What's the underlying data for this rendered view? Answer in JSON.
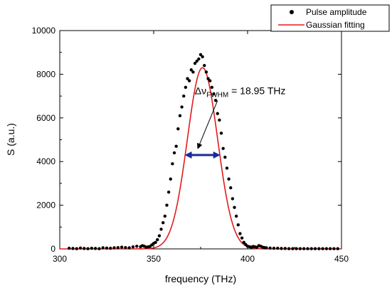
{
  "chart_data": {
    "type": "scatter",
    "xlabel": "frequency (THz)",
    "ylabel": "S (a.u.)",
    "xlim": [
      300,
      450
    ],
    "ylim": [
      0,
      10000
    ],
    "x_ticks": [
      300,
      350,
      400,
      450
    ],
    "y_ticks": [
      0,
      2000,
      4000,
      6000,
      8000,
      10000
    ],
    "legend_position": "top-right",
    "colors": {
      "points": "#000000",
      "fit": "#e41a1c",
      "fwhm_arrow": "#1a2a9c"
    },
    "series": [
      {
        "name": "Pulse amplitude",
        "kind": "scatter",
        "x": [
          305,
          307,
          309,
          311,
          313,
          315,
          317,
          319,
          321,
          323,
          325,
          327,
          329,
          331,
          333,
          335,
          337,
          339,
          341,
          343,
          344,
          345,
          346,
          347,
          348,
          349,
          350,
          351,
          352,
          353,
          354,
          355,
          356,
          357,
          358,
          359,
          360,
          361,
          362,
          363,
          364,
          365,
          366,
          367,
          368,
          369,
          370,
          371,
          372,
          373,
          374,
          375,
          376,
          377,
          378,
          379,
          380,
          381,
          382,
          383,
          384,
          385,
          386,
          387,
          388,
          389,
          390,
          391,
          392,
          393,
          394,
          395,
          396,
          397,
          398,
          399,
          400,
          401,
          402,
          403,
          404,
          405,
          406,
          407,
          408,
          409,
          410,
          412,
          414,
          416,
          418,
          420,
          422,
          424,
          426,
          428,
          430,
          432,
          434,
          436,
          438,
          440,
          442,
          444,
          446,
          448
        ],
        "y": [
          30,
          20,
          10,
          40,
          20,
          10,
          30,
          20,
          10,
          50,
          40,
          30,
          50,
          60,
          80,
          60,
          50,
          90,
          120,
          100,
          150,
          120,
          80,
          90,
          110,
          180,
          250,
          300,
          420,
          600,
          900,
          1200,
          1500,
          2000,
          2600,
          3200,
          3900,
          4400,
          4700,
          5500,
          6100,
          6500,
          7000,
          7400,
          7800,
          7700,
          8200,
          8100,
          8500,
          8600,
          8700,
          8900,
          8800,
          8400,
          8100,
          7800,
          7700,
          7400,
          7100,
          6800,
          6200,
          5900,
          5300,
          4600,
          4200,
          3700,
          3200,
          2800,
          2300,
          1900,
          1500,
          1100,
          700,
          500,
          300,
          200,
          120,
          100,
          80,
          110,
          90,
          70,
          150,
          120,
          80,
          60,
          50,
          40,
          30,
          30,
          20,
          20,
          10,
          10,
          10,
          10,
          10,
          10,
          10,
          10,
          10,
          10,
          10,
          10,
          10,
          10
        ]
      },
      {
        "name": "Gaussian fitting",
        "kind": "line",
        "center": 376,
        "fwhm": 18.95,
        "amplitude": 8300
      }
    ],
    "annotation": {
      "main": "Δν",
      "sub": "FWHM",
      "value": " = 18.95 THz",
      "arrow_from": [
        384,
        7250
      ],
      "arrow_to": [
        373.5,
        4600
      ]
    },
    "fwhm_marker": {
      "x1": 366.5,
      "x2": 385.5,
      "y": 4300
    }
  }
}
